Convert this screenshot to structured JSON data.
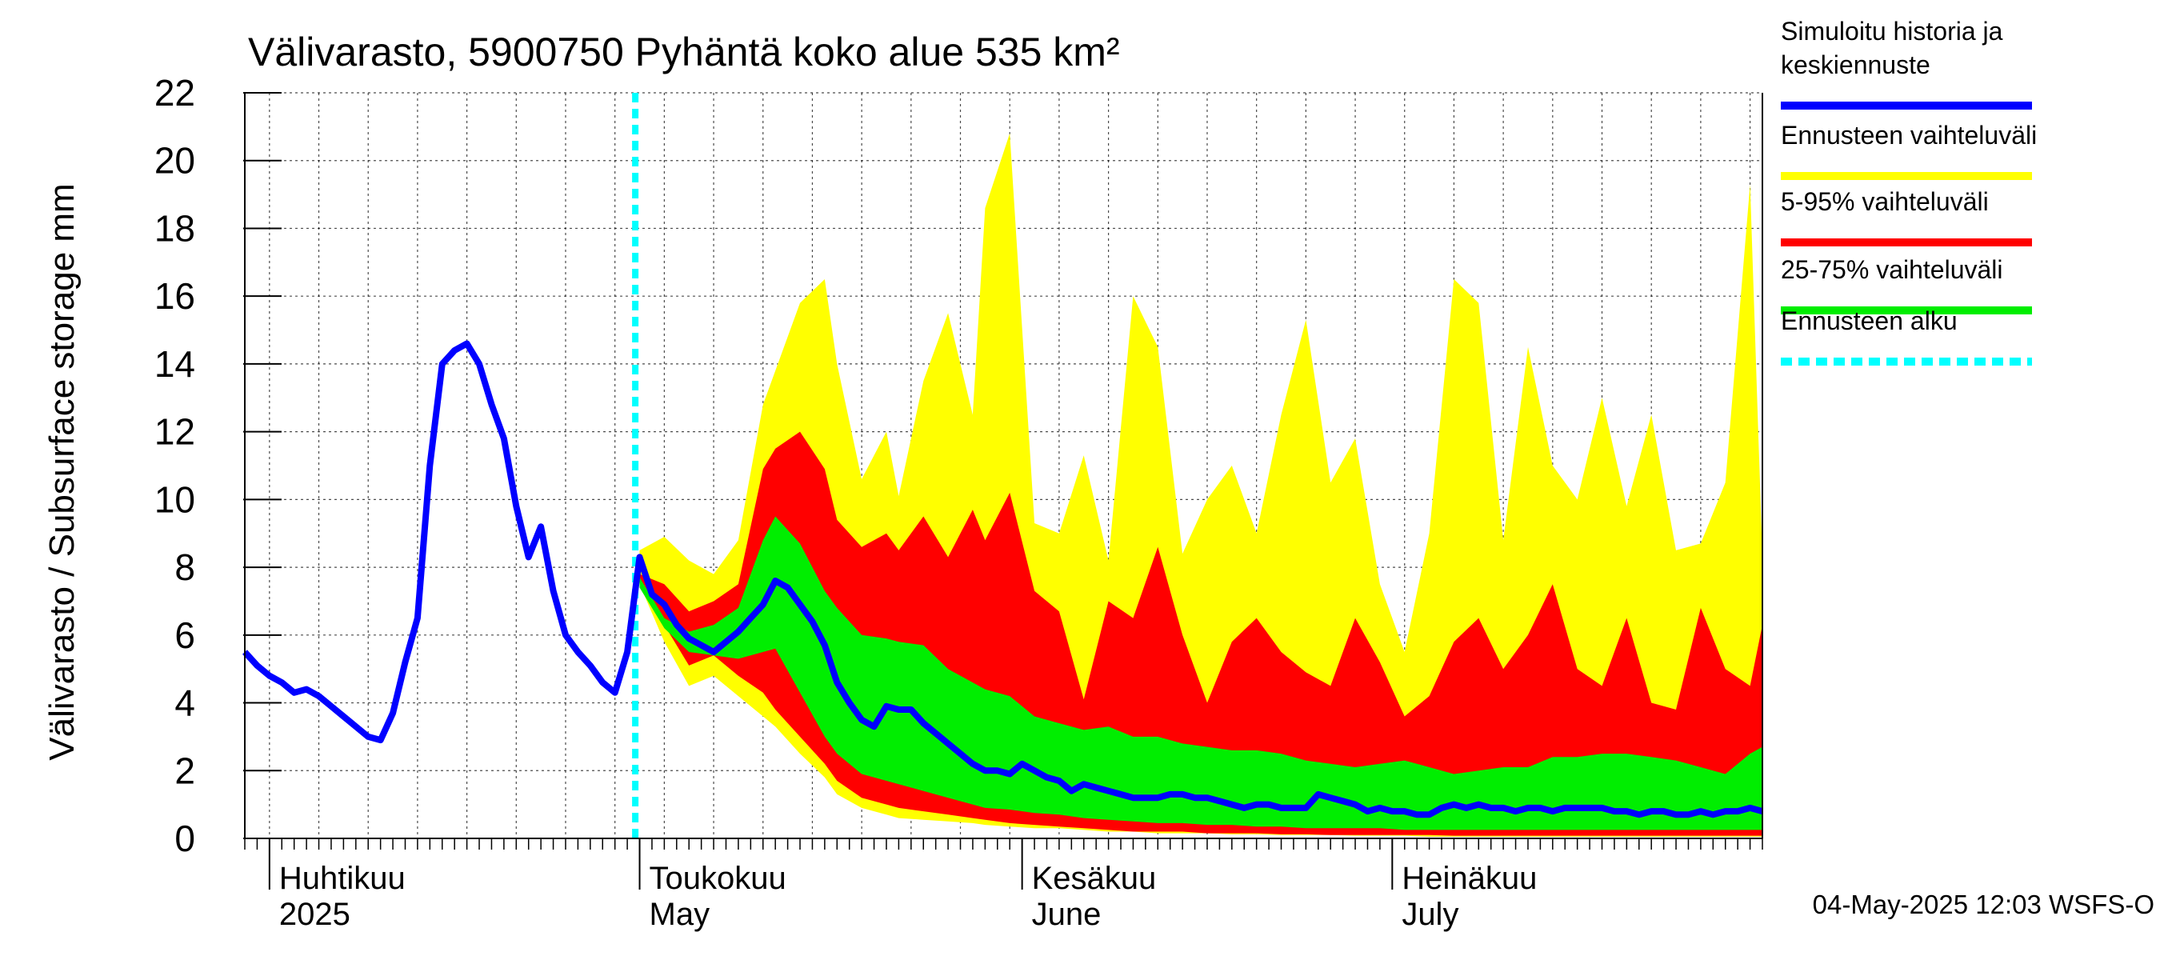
{
  "chart_data": {
    "type": "area",
    "title": "Välivarasto, 5900750 Pyhäntä koko alue 535 km²",
    "ylabel": "Välivarasto / Subsurface storage  mm",
    "ylim": [
      0,
      22
    ],
    "yticks": [
      0,
      2,
      4,
      6,
      8,
      10,
      12,
      14,
      16,
      18,
      20,
      22
    ],
    "xlim": [
      "2025-03-30",
      "2025-07-31"
    ],
    "grid": true,
    "legend_position": "right",
    "x_month_labels": [
      {
        "date": "2025-04-01",
        "line1": "Huhtikuu",
        "line2": "2025"
      },
      {
        "date": "2025-05-01",
        "line1": "Toukokuu",
        "line2": "May"
      },
      {
        "date": "2025-06-01",
        "line1": "Kesäkuu",
        "line2": "June"
      },
      {
        "date": "2025-07-01",
        "line1": "Heinäkuu",
        "line2": "July"
      }
    ],
    "forecast_start": "2025-04-30",
    "timestamp": "04-May-2025 12:03 WSFS-O",
    "legend": [
      {
        "label": "Simuloitu historia ja keskiennuste",
        "color": "#0000ff"
      },
      {
        "label": "Ennusteen vaihteluväli",
        "color": "#ffff00"
      },
      {
        "label": "5-95% vaihteluväli",
        "color": "#ff0000"
      },
      {
        "label": "25-75% vaihteluväli",
        "color": "#00ee00"
      },
      {
        "label": "Ennusteen alku",
        "color": "#00ffff"
      }
    ],
    "colors": {
      "history": "#0000ff",
      "full_range": "#ffff00",
      "p5_95": "#ff0000",
      "p25_75": "#00ee00",
      "forecast_start": "#00ffff"
    },
    "series": [
      {
        "name": "Simuloitu historia ja keskiennuste",
        "points": [
          [
            "2025-03-30",
            5.5
          ],
          [
            "2025-03-31",
            5.1
          ],
          [
            "2025-04-01",
            4.8
          ],
          [
            "2025-04-02",
            4.6
          ],
          [
            "2025-04-03",
            4.3
          ],
          [
            "2025-04-04",
            4.4
          ],
          [
            "2025-04-05",
            4.2
          ],
          [
            "2025-04-06",
            3.9
          ],
          [
            "2025-04-07",
            3.6
          ],
          [
            "2025-04-08",
            3.3
          ],
          [
            "2025-04-09",
            3.0
          ],
          [
            "2025-04-10",
            2.9
          ],
          [
            "2025-04-11",
            3.7
          ],
          [
            "2025-04-12",
            5.2
          ],
          [
            "2025-04-13",
            6.5
          ],
          [
            "2025-04-14",
            11.0
          ],
          [
            "2025-04-15",
            14.0
          ],
          [
            "2025-04-16",
            14.4
          ],
          [
            "2025-04-17",
            14.6
          ],
          [
            "2025-04-18",
            14.0
          ],
          [
            "2025-04-19",
            12.8
          ],
          [
            "2025-04-20",
            11.8
          ],
          [
            "2025-04-21",
            9.8
          ],
          [
            "2025-04-22",
            8.3
          ],
          [
            "2025-04-23",
            9.2
          ],
          [
            "2025-04-24",
            7.3
          ],
          [
            "2025-04-25",
            6.0
          ],
          [
            "2025-04-26",
            5.5
          ],
          [
            "2025-04-27",
            5.1
          ],
          [
            "2025-04-28",
            4.6
          ],
          [
            "2025-04-29",
            4.3
          ],
          [
            "2025-04-30",
            5.5
          ],
          [
            "2025-05-01",
            8.3
          ],
          [
            "2025-05-02",
            7.2
          ],
          [
            "2025-05-03",
            6.9
          ],
          [
            "2025-05-04",
            6.3
          ],
          [
            "2025-05-05",
            5.9
          ],
          [
            "2025-05-06",
            5.7
          ],
          [
            "2025-05-07",
            5.5
          ],
          [
            "2025-05-08",
            5.8
          ],
          [
            "2025-05-09",
            6.1
          ],
          [
            "2025-05-10",
            6.5
          ],
          [
            "2025-05-11",
            6.9
          ],
          [
            "2025-05-12",
            7.6
          ],
          [
            "2025-05-13",
            7.4
          ],
          [
            "2025-05-14",
            6.9
          ],
          [
            "2025-05-15",
            6.4
          ],
          [
            "2025-05-16",
            5.7
          ],
          [
            "2025-05-17",
            4.6
          ],
          [
            "2025-05-18",
            4.0
          ],
          [
            "2025-05-19",
            3.5
          ],
          [
            "2025-05-20",
            3.3
          ],
          [
            "2025-05-21",
            3.9
          ],
          [
            "2025-05-22",
            3.8
          ],
          [
            "2025-05-23",
            3.8
          ],
          [
            "2025-05-24",
            3.4
          ],
          [
            "2025-05-25",
            3.1
          ],
          [
            "2025-05-26",
            2.8
          ],
          [
            "2025-05-27",
            2.5
          ],
          [
            "2025-05-28",
            2.2
          ],
          [
            "2025-05-29",
            2.0
          ],
          [
            "2025-05-30",
            2.0
          ],
          [
            "2025-05-31",
            1.9
          ],
          [
            "2025-06-01",
            2.2
          ],
          [
            "2025-06-02",
            2.0
          ],
          [
            "2025-06-03",
            1.8
          ],
          [
            "2025-06-04",
            1.7
          ],
          [
            "2025-06-05",
            1.4
          ],
          [
            "2025-06-06",
            1.6
          ],
          [
            "2025-06-07",
            1.5
          ],
          [
            "2025-06-08",
            1.4
          ],
          [
            "2025-06-09",
            1.3
          ],
          [
            "2025-06-10",
            1.2
          ],
          [
            "2025-06-11",
            1.2
          ],
          [
            "2025-06-12",
            1.2
          ],
          [
            "2025-06-13",
            1.3
          ],
          [
            "2025-06-14",
            1.3
          ],
          [
            "2025-06-15",
            1.2
          ],
          [
            "2025-06-16",
            1.2
          ],
          [
            "2025-06-17",
            1.1
          ],
          [
            "2025-06-18",
            1.0
          ],
          [
            "2025-06-19",
            0.9
          ],
          [
            "2025-06-20",
            1.0
          ],
          [
            "2025-06-21",
            1.0
          ],
          [
            "2025-06-22",
            0.9
          ],
          [
            "2025-06-23",
            0.9
          ],
          [
            "2025-06-24",
            0.9
          ],
          [
            "2025-06-25",
            1.3
          ],
          [
            "2025-06-26",
            1.2
          ],
          [
            "2025-06-27",
            1.1
          ],
          [
            "2025-06-28",
            1.0
          ],
          [
            "2025-06-29",
            0.8
          ],
          [
            "2025-06-30",
            0.9
          ],
          [
            "2025-07-01",
            0.8
          ],
          [
            "2025-07-02",
            0.8
          ],
          [
            "2025-07-03",
            0.7
          ],
          [
            "2025-07-04",
            0.7
          ],
          [
            "2025-07-05",
            0.9
          ],
          [
            "2025-07-06",
            1.0
          ],
          [
            "2025-07-07",
            0.9
          ],
          [
            "2025-07-08",
            1.0
          ],
          [
            "2025-07-09",
            0.9
          ],
          [
            "2025-07-10",
            0.9
          ],
          [
            "2025-07-11",
            0.8
          ],
          [
            "2025-07-12",
            0.9
          ],
          [
            "2025-07-13",
            0.9
          ],
          [
            "2025-07-14",
            0.8
          ],
          [
            "2025-07-15",
            0.9
          ],
          [
            "2025-07-16",
            0.9
          ],
          [
            "2025-07-17",
            0.9
          ],
          [
            "2025-07-18",
            0.9
          ],
          [
            "2025-07-19",
            0.8
          ],
          [
            "2025-07-20",
            0.8
          ],
          [
            "2025-07-21",
            0.7
          ],
          [
            "2025-07-22",
            0.8
          ],
          [
            "2025-07-23",
            0.8
          ],
          [
            "2025-07-24",
            0.7
          ],
          [
            "2025-07-25",
            0.7
          ],
          [
            "2025-07-26",
            0.8
          ],
          [
            "2025-07-27",
            0.7
          ],
          [
            "2025-07-28",
            0.8
          ],
          [
            "2025-07-29",
            0.8
          ],
          [
            "2025-07-30",
            0.9
          ],
          [
            "2025-07-31",
            0.8
          ]
        ]
      }
    ],
    "bands": [
      {
        "name": "Ennusteen vaihteluväli",
        "color": "#ffff00",
        "dates": [
          "2025-05-01",
          "2025-05-03",
          "2025-05-05",
          "2025-05-07",
          "2025-05-09",
          "2025-05-11",
          "2025-05-12",
          "2025-05-14",
          "2025-05-16",
          "2025-05-17",
          "2025-05-19",
          "2025-05-21",
          "2025-05-22",
          "2025-05-24",
          "2025-05-26",
          "2025-05-28",
          "2025-05-29",
          "2025-05-31",
          "2025-06-02",
          "2025-06-04",
          "2025-06-06",
          "2025-06-08",
          "2025-06-10",
          "2025-06-12",
          "2025-06-14",
          "2025-06-16",
          "2025-06-18",
          "2025-06-20",
          "2025-06-22",
          "2025-06-24",
          "2025-06-26",
          "2025-06-28",
          "2025-06-30",
          "2025-07-02",
          "2025-07-04",
          "2025-07-06",
          "2025-07-08",
          "2025-07-10",
          "2025-07-12",
          "2025-07-14",
          "2025-07-16",
          "2025-07-18",
          "2025-07-20",
          "2025-07-22",
          "2025-07-24",
          "2025-07-26",
          "2025-07-28",
          "2025-07-30",
          "2025-07-31"
        ],
        "upper": [
          8.5,
          8.9,
          8.2,
          7.8,
          8.8,
          12.8,
          13.8,
          15.8,
          16.5,
          14.0,
          10.6,
          12.0,
          10.1,
          13.5,
          15.5,
          12.5,
          18.6,
          20.8,
          9.3,
          9.0,
          11.3,
          8.2,
          16.0,
          14.5,
          8.4,
          10.0,
          11.0,
          9.0,
          12.5,
          15.3,
          10.5,
          11.8,
          7.5,
          5.5,
          9.0,
          16.5,
          15.8,
          8.8,
          14.5,
          11.0,
          10.0,
          13.0,
          9.8,
          12.5,
          8.5,
          8.7,
          10.5,
          19.3,
          8.3
        ],
        "lower": [
          7.5,
          5.8,
          4.5,
          4.8,
          4.2,
          3.6,
          3.3,
          2.5,
          1.8,
          1.3,
          0.9,
          0.7,
          0.6,
          0.55,
          0.5,
          0.45,
          0.4,
          0.35,
          0.3,
          0.3,
          0.25,
          0.2,
          0.2,
          0.15,
          0.15,
          0.15,
          0.12,
          0.12,
          0.1,
          0.1,
          0.1,
          0.08,
          0.08,
          0.08,
          0.05,
          0.05,
          0.05,
          0.05,
          0.05,
          0.05,
          0.05,
          0.05,
          0.05,
          0.05,
          0.05,
          0.05,
          0.05,
          0.05,
          0.05
        ]
      },
      {
        "name": "5-95% vaihteluväli",
        "color": "#ff0000",
        "dates": [
          "2025-05-01",
          "2025-05-03",
          "2025-05-05",
          "2025-05-07",
          "2025-05-09",
          "2025-05-11",
          "2025-05-12",
          "2025-05-14",
          "2025-05-16",
          "2025-05-17",
          "2025-05-19",
          "2025-05-21",
          "2025-05-22",
          "2025-05-24",
          "2025-05-26",
          "2025-05-28",
          "2025-05-29",
          "2025-05-31",
          "2025-06-02",
          "2025-06-04",
          "2025-06-06",
          "2025-06-08",
          "2025-06-10",
          "2025-06-12",
          "2025-06-14",
          "2025-06-16",
          "2025-06-18",
          "2025-06-20",
          "2025-06-22",
          "2025-06-24",
          "2025-06-26",
          "2025-06-28",
          "2025-06-30",
          "2025-07-02",
          "2025-07-04",
          "2025-07-06",
          "2025-07-08",
          "2025-07-10",
          "2025-07-12",
          "2025-07-14",
          "2025-07-16",
          "2025-07-18",
          "2025-07-20",
          "2025-07-22",
          "2025-07-24",
          "2025-07-26",
          "2025-07-28",
          "2025-07-30",
          "2025-07-31"
        ],
        "upper": [
          7.8,
          7.5,
          6.7,
          7.0,
          7.5,
          10.9,
          11.5,
          12.0,
          10.9,
          9.4,
          8.6,
          9.0,
          8.5,
          9.5,
          8.3,
          9.7,
          8.8,
          10.2,
          7.3,
          6.7,
          4.1,
          7.0,
          6.5,
          8.6,
          6.0,
          4.0,
          5.8,
          6.5,
          5.5,
          4.9,
          4.5,
          6.5,
          5.2,
          3.6,
          4.2,
          5.8,
          6.5,
          5.0,
          6.0,
          7.5,
          5.0,
          4.5,
          6.5,
          4.0,
          3.8,
          6.8,
          5.0,
          4.5,
          6.3
        ],
        "lower": [
          7.7,
          6.3,
          5.1,
          5.4,
          4.8,
          4.3,
          3.8,
          3.0,
          2.2,
          1.7,
          1.2,
          1.0,
          0.9,
          0.8,
          0.7,
          0.6,
          0.55,
          0.45,
          0.4,
          0.35,
          0.3,
          0.25,
          0.2,
          0.2,
          0.2,
          0.15,
          0.15,
          0.15,
          0.12,
          0.12,
          0.1,
          0.1,
          0.1,
          0.1,
          0.1,
          0.08,
          0.08,
          0.08,
          0.08,
          0.08,
          0.08,
          0.08,
          0.08,
          0.08,
          0.08,
          0.08,
          0.08,
          0.08,
          0.08
        ]
      },
      {
        "name": "25-75% vaihteluväli",
        "color": "#00ee00",
        "dates": [
          "2025-05-01",
          "2025-05-03",
          "2025-05-05",
          "2025-05-07",
          "2025-05-09",
          "2025-05-11",
          "2025-05-12",
          "2025-05-14",
          "2025-05-16",
          "2025-05-17",
          "2025-05-19",
          "2025-05-21",
          "2025-05-22",
          "2025-05-24",
          "2025-05-26",
          "2025-05-28",
          "2025-05-29",
          "2025-05-31",
          "2025-06-02",
          "2025-06-04",
          "2025-06-06",
          "2025-06-08",
          "2025-06-10",
          "2025-06-12",
          "2025-06-14",
          "2025-06-16",
          "2025-06-18",
          "2025-06-20",
          "2025-06-22",
          "2025-06-24",
          "2025-06-26",
          "2025-06-28",
          "2025-06-30",
          "2025-07-02",
          "2025-07-04",
          "2025-07-06",
          "2025-07-08",
          "2025-07-10",
          "2025-07-12",
          "2025-07-14",
          "2025-07-16",
          "2025-07-18",
          "2025-07-20",
          "2025-07-22",
          "2025-07-24",
          "2025-07-26",
          "2025-07-28",
          "2025-07-30",
          "2025-07-31"
        ],
        "upper": [
          7.7,
          6.5,
          6.1,
          6.3,
          6.8,
          8.8,
          9.5,
          8.7,
          7.3,
          6.8,
          6.0,
          5.9,
          5.8,
          5.7,
          5.0,
          4.6,
          4.4,
          4.2,
          3.6,
          3.4,
          3.2,
          3.3,
          3.0,
          3.0,
          2.8,
          2.7,
          2.6,
          2.6,
          2.5,
          2.3,
          2.2,
          2.1,
          2.2,
          2.3,
          2.1,
          1.9,
          2.0,
          2.1,
          2.1,
          2.4,
          2.4,
          2.5,
          2.5,
          2.4,
          2.3,
          2.1,
          1.9,
          2.5,
          2.7
        ],
        "lower": [
          7.4,
          6.2,
          5.5,
          5.4,
          5.3,
          5.5,
          5.6,
          4.3,
          3.0,
          2.5,
          1.9,
          1.7,
          1.6,
          1.4,
          1.2,
          1.0,
          0.9,
          0.85,
          0.75,
          0.7,
          0.6,
          0.55,
          0.5,
          0.45,
          0.45,
          0.4,
          0.4,
          0.35,
          0.35,
          0.3,
          0.3,
          0.3,
          0.3,
          0.25,
          0.25,
          0.25,
          0.25,
          0.25,
          0.25,
          0.25,
          0.25,
          0.25,
          0.25,
          0.25,
          0.25,
          0.25,
          0.25,
          0.25,
          0.25
        ]
      }
    ]
  }
}
